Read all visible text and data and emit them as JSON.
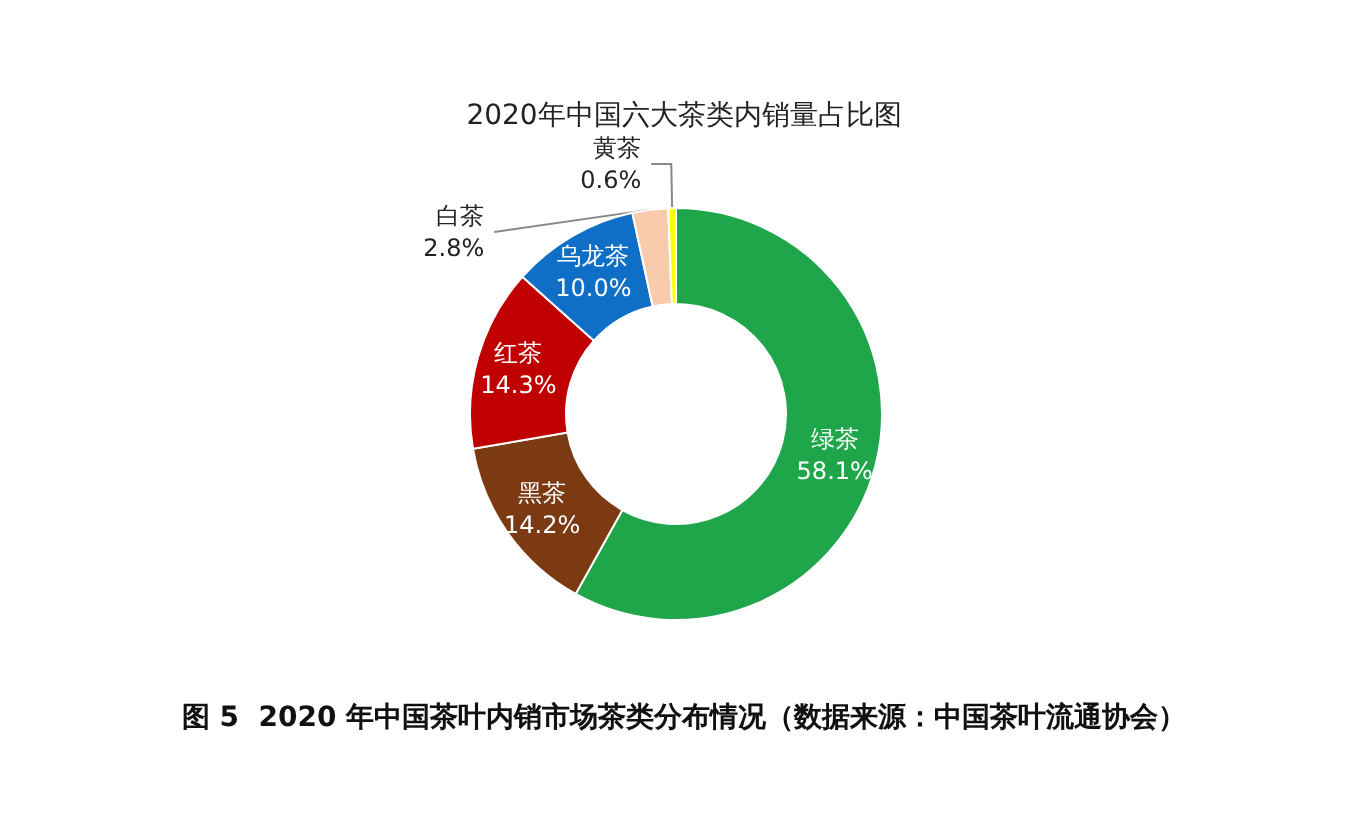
{
  "chart_data": {
    "type": "donut",
    "title": "2020年中国六大茶类内销量占比图",
    "categories": [
      "绿茶",
      "黑茶",
      "红茶",
      "乌龙茶",
      "白茶",
      "黄茶"
    ],
    "values": [
      58.1,
      14.2,
      14.3,
      10.0,
      2.8,
      0.6
    ],
    "value_labels": [
      "58.1%",
      "14.2%",
      "14.3%",
      "10.0%",
      "2.8%",
      "0.6%"
    ],
    "colors": [
      "#1fa64a",
      "#7b3a12",
      "#c00000",
      "#0f6fc6",
      "#f8cbad",
      "#ffff00"
    ],
    "legend": false,
    "annotations": [
      "图 5  2020 年中国茶叶内销市场茶类分布情况（数据来源：中国茶叶流通协会）"
    ]
  }
}
